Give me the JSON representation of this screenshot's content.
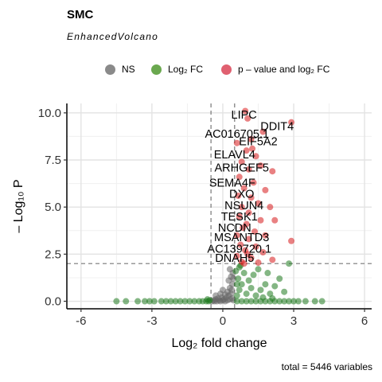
{
  "title": "SMC",
  "subtitle": "EnhancedVolcano",
  "caption": "total = 5446 variables",
  "legend": [
    {
      "label": "NS",
      "color": "#8a8a8a"
    },
    {
      "label": "Log₂ FC",
      "color": "#6aa84f"
    },
    {
      "label": "p – value and log₂ FC",
      "color": "#e06070"
    }
  ],
  "chart_data": {
    "type": "scatter",
    "xlabel": "Log₂ fold change",
    "ylabel": "– Log₁₀ P",
    "xlim": [
      -6.6,
      6.3
    ],
    "ylim": [
      -0.4,
      10.5
    ],
    "xticks": [
      -6,
      -3,
      0,
      3,
      6
    ],
    "xtick_labels": [
      "-6",
      "-3",
      "0",
      "3",
      "6"
    ],
    "yticks": [
      0,
      2.5,
      5,
      7.5,
      10
    ],
    "ytick_labels": [
      "0.0",
      "2.5",
      "5.0",
      "7.5",
      "10.0"
    ],
    "fc_cutoff": 0.5,
    "p_cutoff_log10": 2,
    "grid": true,
    "colors": {
      "ns": "#666666",
      "fc": "#1f7a1f",
      "sig": "#d7191c"
    },
    "labels": [
      {
        "text": "LIPC",
        "x": 0.9,
        "y": 9.9
      },
      {
        "text": "DDIT4",
        "x": 2.3,
        "y": 9.3
      },
      {
        "text": "AC016705.1",
        "x": 0.6,
        "y": 8.9
      },
      {
        "text": "EIF5A2",
        "x": 1.5,
        "y": 8.5
      },
      {
        "text": "ELAVL4",
        "x": 0.5,
        "y": 7.8
      },
      {
        "text": "ARHGEF5",
        "x": 0.8,
        "y": 7.1
      },
      {
        "text": "SEMA4F",
        "x": 0.4,
        "y": 6.3
      },
      {
        "text": "DXO",
        "x": 0.8,
        "y": 5.7
      },
      {
        "text": "NSUN4",
        "x": 0.9,
        "y": 5.1
      },
      {
        "text": "TESK1",
        "x": 0.7,
        "y": 4.5
      },
      {
        "text": "NCDN",
        "x": 0.5,
        "y": 3.9
      },
      {
        "text": "MSANTD3",
        "x": 0.8,
        "y": 3.4
      },
      {
        "text": "AC139720.1",
        "x": 0.7,
        "y": 2.8
      },
      {
        "text": "DNAH5",
        "x": 0.5,
        "y": 2.3
      }
    ],
    "sig_points": [
      [
        0.95,
        10.1
      ],
      [
        2.9,
        9.5
      ],
      [
        1.05,
        9.7
      ],
      [
        1.7,
        9.0
      ],
      [
        0.6,
        8.4
      ],
      [
        1.2,
        8.6
      ],
      [
        1.0,
        8.0
      ],
      [
        1.4,
        7.7
      ],
      [
        0.8,
        7.4
      ],
      [
        1.6,
        7.2
      ],
      [
        1.1,
        7.0
      ],
      [
        2.1,
        6.9
      ],
      [
        0.7,
        6.6
      ],
      [
        1.3,
        6.3
      ],
      [
        0.9,
        6.0
      ],
      [
        1.8,
        5.9
      ],
      [
        0.65,
        5.6
      ],
      [
        1.2,
        5.5
      ],
      [
        1.5,
        5.2
      ],
      [
        0.8,
        5.0
      ],
      [
        2.0,
        5.0
      ],
      [
        1.1,
        4.7
      ],
      [
        0.7,
        4.5
      ],
      [
        1.6,
        4.3
      ],
      [
        1.0,
        4.1
      ],
      [
        2.2,
        4.3
      ],
      [
        0.85,
        3.9
      ],
      [
        1.35,
        3.7
      ],
      [
        0.6,
        3.5
      ],
      [
        1.8,
        3.5
      ],
      [
        1.1,
        3.3
      ],
      [
        2.9,
        3.2
      ],
      [
        0.75,
        3.0
      ],
      [
        1.4,
        2.9
      ],
      [
        0.95,
        2.7
      ],
      [
        1.7,
        2.6
      ],
      [
        0.6,
        2.4
      ],
      [
        1.2,
        2.3
      ],
      [
        2.1,
        2.2
      ],
      [
        0.8,
        2.1
      ],
      [
        1.5,
        2.05
      ],
      [
        0.9,
        2.0
      ],
      [
        1.05,
        2.5
      ],
      [
        1.25,
        8.1
      ]
    ],
    "fc_points": [
      [
        -4.5,
        0.0
      ],
      [
        -4.1,
        0.0
      ],
      [
        -3.6,
        0.0
      ],
      [
        -3.3,
        0.0
      ],
      [
        -3.1,
        0.0
      ],
      [
        -2.9,
        0.0
      ],
      [
        -2.6,
        0.0
      ],
      [
        -2.4,
        0.0
      ],
      [
        -2.2,
        0.0
      ],
      [
        -2.0,
        0.0
      ],
      [
        -1.8,
        0.0
      ],
      [
        -1.6,
        0.0
      ],
      [
        -1.4,
        0.0
      ],
      [
        -1.2,
        0.0
      ],
      [
        -1.0,
        0.0
      ],
      [
        -0.85,
        0.0
      ],
      [
        -0.7,
        0.0
      ],
      [
        -0.6,
        0.0
      ],
      [
        -0.55,
        0.05
      ],
      [
        -0.65,
        0.1
      ],
      [
        0.6,
        0.0
      ],
      [
        0.8,
        0.0
      ],
      [
        1.0,
        0.0
      ],
      [
        1.2,
        0.0
      ],
      [
        1.4,
        0.0
      ],
      [
        1.6,
        0.0
      ],
      [
        1.8,
        0.0
      ],
      [
        2.0,
        0.0
      ],
      [
        2.2,
        0.0
      ],
      [
        2.4,
        0.0
      ],
      [
        2.6,
        0.0
      ],
      [
        2.8,
        0.0
      ],
      [
        3.0,
        0.0
      ],
      [
        3.2,
        0.0
      ],
      [
        3.5,
        0.0
      ],
      [
        3.9,
        0.0
      ],
      [
        4.2,
        0.0
      ],
      [
        0.6,
        0.3
      ],
      [
        0.7,
        0.6
      ],
      [
        0.8,
        0.9
      ],
      [
        0.65,
        1.2
      ],
      [
        0.9,
        1.5
      ],
      [
        0.7,
        1.8
      ],
      [
        1.0,
        0.4
      ],
      [
        1.2,
        0.7
      ],
      [
        1.4,
        0.3
      ],
      [
        1.1,
        1.1
      ],
      [
        1.3,
        1.4
      ],
      [
        1.6,
        0.6
      ],
      [
        1.8,
        0.9
      ],
      [
        1.5,
        1.7
      ],
      [
        2.0,
        0.4
      ],
      [
        2.2,
        0.8
      ],
      [
        2.4,
        1.2
      ],
      [
        1.9,
        1.5
      ],
      [
        2.6,
        0.5
      ],
      [
        0.55,
        1.6
      ],
      [
        0.75,
        1.9
      ],
      [
        2.8,
        2.0
      ],
      [
        1.7,
        0.2
      ],
      [
        2.1,
        0.15
      ],
      [
        0.6,
        0.9
      ]
    ],
    "ns_points": [
      [
        -0.45,
        0.0
      ],
      [
        -0.4,
        0.05
      ],
      [
        -0.35,
        0.0
      ],
      [
        -0.3,
        0.1
      ],
      [
        -0.25,
        0.0
      ],
      [
        -0.2,
        0.15
      ],
      [
        -0.15,
        0.05
      ],
      [
        -0.1,
        0.0
      ],
      [
        -0.05,
        0.2
      ],
      [
        0.0,
        0.05
      ],
      [
        0.05,
        0.1
      ],
      [
        0.1,
        0.0
      ],
      [
        0.15,
        0.2
      ],
      [
        0.2,
        0.05
      ],
      [
        0.25,
        0.3
      ],
      [
        0.3,
        0.1
      ],
      [
        0.35,
        0.4
      ],
      [
        0.4,
        0.15
      ],
      [
        0.45,
        0.05
      ],
      [
        0.2,
        0.5
      ],
      [
        0.3,
        0.7
      ],
      [
        0.4,
        0.9
      ],
      [
        0.25,
        1.1
      ],
      [
        0.35,
        1.3
      ],
      [
        0.42,
        1.5
      ],
      [
        0.3,
        1.7
      ],
      [
        0.45,
        1.2
      ],
      [
        0.38,
        0.6
      ],
      [
        -0.3,
        0.3
      ],
      [
        -0.1,
        0.4
      ],
      [
        0.1,
        0.35
      ],
      [
        0.0,
        0.6
      ]
    ]
  }
}
